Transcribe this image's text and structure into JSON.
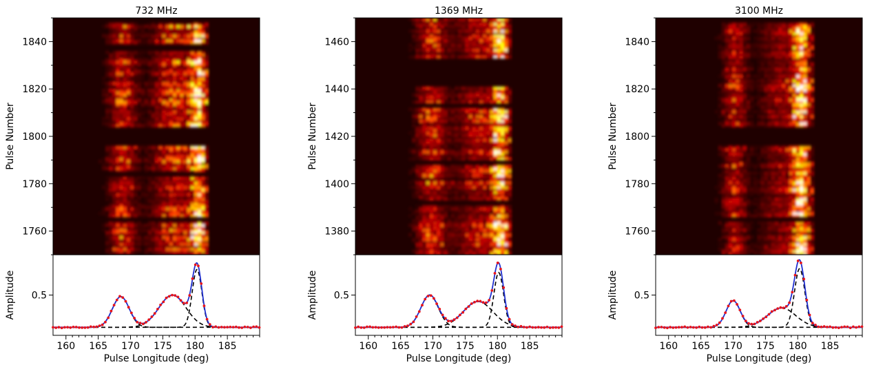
{
  "chart_data": [
    {
      "type": "heatmap",
      "title": "732 MHz",
      "ylabel": "Pulse Number",
      "ylim": [
        1750,
        1850
      ],
      "y_ticks": [
        1760,
        1780,
        1800,
        1820,
        1840
      ],
      "xlim": [
        158,
        190
      ],
      "colormap": "afmhot",
      "active_rows": [
        [
          1750,
          1764
        ],
        [
          1766,
          1783
        ],
        [
          1785,
          1796
        ],
        [
          1804,
          1836
        ],
        [
          1839,
          1848
        ]
      ],
      "emission_longitude_range": [
        165,
        182
      ],
      "emission_components_deg": [
        168.5,
        176.5,
        180.3
      ],
      "profile": {
        "xlabel": "Pulse Longitude (deg)",
        "ylabel": "Amplitude",
        "x_ticks": [
          160,
          165,
          170,
          175,
          180,
          185
        ],
        "y_ticks": [
          0.5
        ],
        "xlim": [
          158,
          190
        ],
        "ylim": [
          0.0,
          1.0
        ],
        "baseline": 0.1,
        "components": [
          {
            "center": 168.5,
            "amplitude": 0.38,
            "width": 1.3
          },
          {
            "center": 176.5,
            "amplitude": 0.4,
            "width": 2.1
          },
          {
            "center": 180.3,
            "amplitude": 0.72,
            "width": 0.75
          }
        ],
        "series": [
          {
            "style": "red-dots",
            "role": "data"
          },
          {
            "style": "blue-line",
            "role": "fit"
          },
          {
            "style": "black-dashed",
            "role": "components"
          }
        ]
      }
    },
    {
      "type": "heatmap",
      "title": "1369 MHz",
      "ylabel": "Pulse Number",
      "ylim": [
        1370,
        1470
      ],
      "y_ticks": [
        1380,
        1400,
        1420,
        1440,
        1460
      ],
      "xlim": [
        158,
        190
      ],
      "colormap": "afmhot",
      "active_rows": [
        [
          1370,
          1391
        ],
        [
          1393,
          1408
        ],
        [
          1410,
          1432
        ],
        [
          1434,
          1441
        ],
        [
          1453,
          1470
        ]
      ],
      "emission_longitude_range": [
        164,
        182
      ],
      "emission_components_deg": [
        169.5,
        177.0,
        180.2
      ],
      "profile": {
        "xlabel": "Pulse Longitude (deg)",
        "ylabel": "Amplitude",
        "x_ticks": [
          160,
          165,
          170,
          175,
          180,
          185
        ],
        "y_ticks": [
          0.5
        ],
        "xlim": [
          158,
          190
        ],
        "ylim": [
          0.0,
          1.0
        ],
        "baseline": 0.1,
        "components": [
          {
            "center": 169.5,
            "amplitude": 0.4,
            "width": 1.35
          },
          {
            "center": 177.0,
            "amplitude": 0.32,
            "width": 2.3
          },
          {
            "center": 180.2,
            "amplitude": 0.68,
            "width": 0.75
          }
        ],
        "series": [
          {
            "style": "red-dots",
            "role": "data"
          },
          {
            "style": "blue-line",
            "role": "fit"
          },
          {
            "style": "black-dashed",
            "role": "components"
          }
        ]
      }
    },
    {
      "type": "heatmap",
      "title": "3100 MHz",
      "ylabel": "Pulse Number",
      "ylim": [
        1750,
        1850
      ],
      "y_ticks": [
        1760,
        1780,
        1800,
        1820,
        1840
      ],
      "xlim": [
        158,
        190
      ],
      "colormap": "afmhot",
      "active_rows": [
        [
          1750,
          1764
        ],
        [
          1766,
          1796
        ],
        [
          1804,
          1848
        ]
      ],
      "emission_longitude_range": [
        166,
        182
      ],
      "emission_components_deg": [
        170.0,
        177.5,
        180.3
      ],
      "profile": {
        "xlabel": "Pulse Longitude (deg)",
        "ylabel": "Amplitude",
        "x_ticks": [
          160,
          165,
          170,
          175,
          180,
          185
        ],
        "y_ticks": [
          0.5
        ],
        "xlim": [
          158,
          190
        ],
        "ylim": [
          0.0,
          1.0
        ],
        "baseline": 0.1,
        "components": [
          {
            "center": 170.0,
            "amplitude": 0.33,
            "width": 1.1
          },
          {
            "center": 177.5,
            "amplitude": 0.24,
            "width": 2.2
          },
          {
            "center": 180.3,
            "amplitude": 0.73,
            "width": 0.8
          }
        ],
        "series": [
          {
            "style": "red-dots",
            "role": "data"
          },
          {
            "style": "blue-line",
            "role": "fit"
          },
          {
            "style": "black-dashed",
            "role": "components"
          }
        ]
      }
    }
  ]
}
